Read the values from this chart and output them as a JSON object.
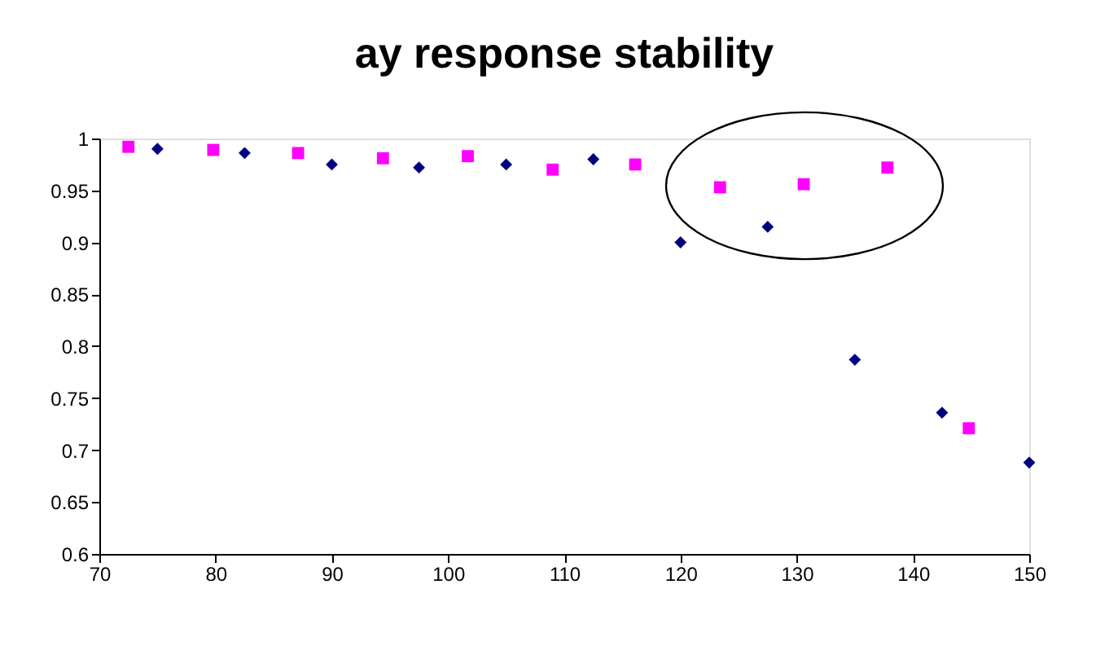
{
  "chart_data": {
    "type": "scatter",
    "title": "ay response stability",
    "xlim": [
      70,
      150
    ],
    "xticks": [
      70,
      80,
      90,
      100,
      110,
      120,
      130,
      140,
      150
    ],
    "ylim": [
      0.6,
      1
    ],
    "yticks": [
      0.6,
      0.65,
      0.7,
      0.75,
      0.8,
      0.85,
      0.9,
      0.95,
      1
    ],
    "grid": false,
    "series": [
      {
        "color": "#000080",
        "marker": "diamond",
        "x": [
          75,
          82.5,
          90,
          97.5,
          105,
          112.5,
          120,
          127.5,
          135,
          142.5,
          150
        ],
        "values": [
          0.99,
          0.986,
          0.975,
          0.972,
          0.975,
          0.98,
          0.9,
          0.915,
          0.787,
          0.736,
          0.688
        ]
      },
      {
        "color": "#ff00ff",
        "marker": "square",
        "x": [
          72.5,
          79.8,
          87.1,
          94.4,
          101.7,
          109.0,
          116.1,
          123.4,
          130.6,
          137.8,
          144.8
        ],
        "values": [
          0.992,
          0.989,
          0.986,
          0.981,
          0.983,
          0.97,
          0.975,
          0.953,
          0.956,
          0.972,
          0.721
        ]
      }
    ]
  }
}
